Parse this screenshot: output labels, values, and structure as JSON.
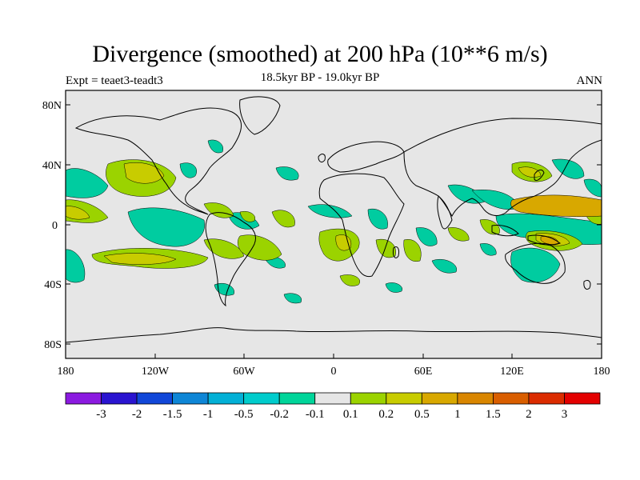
{
  "header": {
    "title": "Divergence (smoothed) at 200 hPa (10**6 m/s)",
    "subtitle": "18.5kyr BP - 19.0kyr BP",
    "left_string": "Expt = teaet3-teadt3",
    "right_string": "ANN"
  },
  "map": {
    "projection": "cylindrical-equidistant",
    "background_color": "#e6e6e6",
    "y_ticks": [
      "80N",
      "40N",
      "0",
      "40S",
      "80S"
    ],
    "x_ticks": [
      "180",
      "120W",
      "60W",
      "0",
      "60E",
      "120E",
      "180"
    ]
  },
  "colorbar": {
    "colors": [
      "#8b1ae0",
      "#2a14d0",
      "#1147d8",
      "#0e86d6",
      "#03b0d6",
      "#00cccc",
      "#00d59a",
      "#e6e6e6",
      "#9bd300",
      "#c8cc00",
      "#d8a800",
      "#d98600",
      "#d95e00",
      "#db2c00",
      "#e30000"
    ],
    "labels": [
      "-3",
      "-2",
      "-1.5",
      "-1",
      "-0.5",
      "-0.2",
      "-0.1",
      "0.1",
      "0.2",
      "0.5",
      "1",
      "1.5",
      "2",
      "3"
    ]
  }
}
